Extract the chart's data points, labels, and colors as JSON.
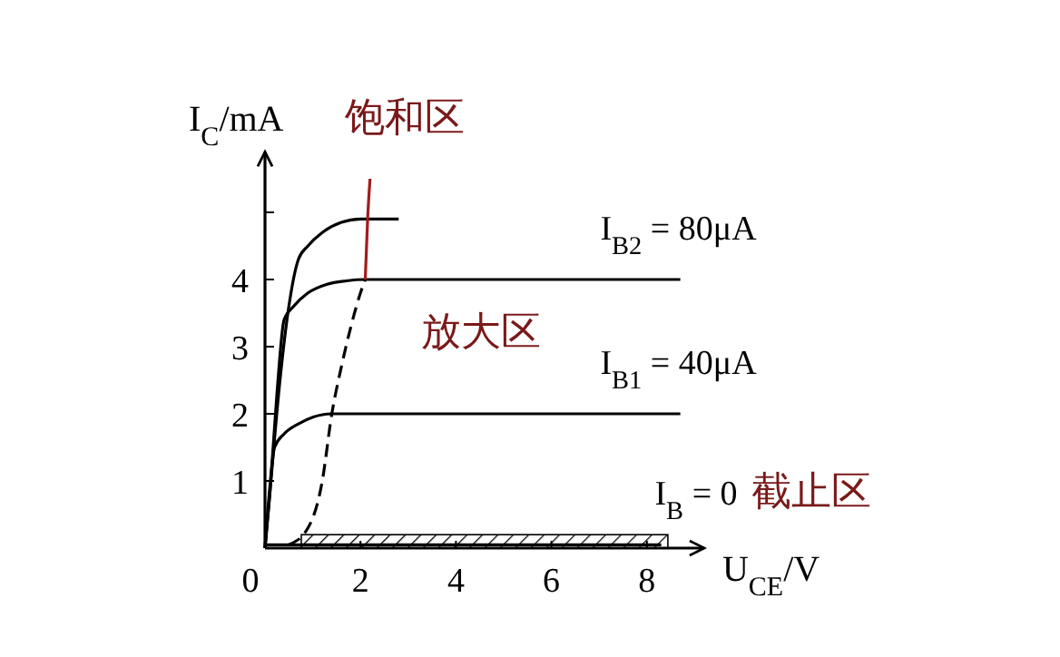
{
  "chart_data": {
    "type": "line",
    "xlabel": "U$_{CE}$/V",
    "ylabel": "I$_{C}$/mA",
    "xlim": [
      0,
      9.2
    ],
    "ylim": [
      0,
      5.9
    ],
    "xticks": [
      0,
      2,
      4,
      6,
      8
    ],
    "yticks": [
      {
        "value": 0,
        "label": null
      },
      1,
      2,
      3,
      4,
      {
        "value": 5,
        "label": null
      }
    ],
    "grid": false,
    "marker": "none",
    "series": [
      {
        "color": "#000000",
        "x": [
          0,
          0.1,
          0.3,
          0.5,
          0.7,
          0.9,
          1.2,
          1.6,
          2.0,
          2.4,
          2.8
        ],
        "values": [
          0,
          0.8,
          2.4,
          3.6,
          4.3,
          4.5,
          4.7,
          4.85,
          4.9,
          4.9,
          4.9
        ]
      },
      {
        "name": "I$_{B2}$ = 80μA",
        "color": "#000000",
        "x": [
          0,
          0.1,
          0.25,
          0.4,
          0.6,
          0.9,
          1.3,
          1.7,
          2.1,
          4,
          6,
          8.7
        ],
        "values": [
          0,
          0.8,
          2.3,
          3.4,
          3.6,
          3.8,
          3.93,
          3.98,
          4,
          4,
          4,
          4
        ]
      },
      {
        "name": "I$_{B1}$ = 40μA",
        "color": "#000000",
        "x": [
          0,
          0.1,
          0.2,
          0.4,
          0.7,
          1.0,
          1.4,
          2,
          4,
          6,
          8.7
        ],
        "values": [
          0,
          0.9,
          1.5,
          1.7,
          1.85,
          1.95,
          2,
          2,
          2,
          2,
          2
        ]
      },
      {
        "name": "I$_{B}$ = 0",
        "color": "#000000",
        "x": [
          0,
          1,
          3,
          5,
          7,
          8.3
        ],
        "values": [
          0.05,
          0.05,
          0.05,
          0.05,
          0.05,
          0.05
        ]
      },
      {
        "color": "#000000",
        "line_style": "dashed",
        "x": [
          0.5,
          0.9,
          1.2,
          1.4,
          1.6,
          1.8,
          2.0,
          2.1
        ],
        "values": [
          0.05,
          0.3,
          1.0,
          2.0,
          2.7,
          3.3,
          3.8,
          4.0
        ]
      },
      {
        "color": "#a01c1c",
        "x": [
          2.1,
          2.15,
          2.2
        ],
        "values": [
          4.0,
          4.9,
          5.5
        ]
      }
    ],
    "bands": [
      {
        "axis": "y",
        "from": 0,
        "to": 0.2
      }
    ],
    "annotations": [
      "饱和区",
      "放大区",
      "截止区"
    ]
  }
}
